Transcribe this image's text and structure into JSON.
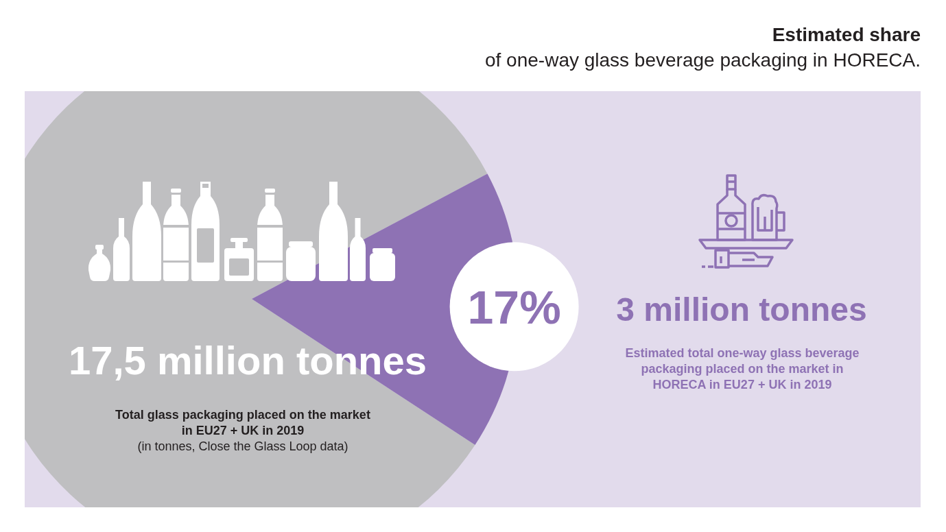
{
  "chart_data": {
    "type": "pie",
    "title": "Estimated share",
    "subtitle": "of one-way glass beverage packaging in HORECA.",
    "categories": [
      null,
      null
    ],
    "values": [
      83,
      17
    ],
    "colors": [
      "#bfbfc1",
      "#8e72b4"
    ],
    "value_labels": [
      null,
      "17%"
    ],
    "annotations": [
      "17,5 million tonnes",
      "Total glass packaging placed on the market\nin EU27 + UK in 2019",
      "(in tonnes, Close the Glass Loop data)",
      "3 million tonnes",
      "Estimated total one-way glass beverage\npackaging placed on the market in\nHORECA in EU27 + UK in 2019"
    ]
  }
}
